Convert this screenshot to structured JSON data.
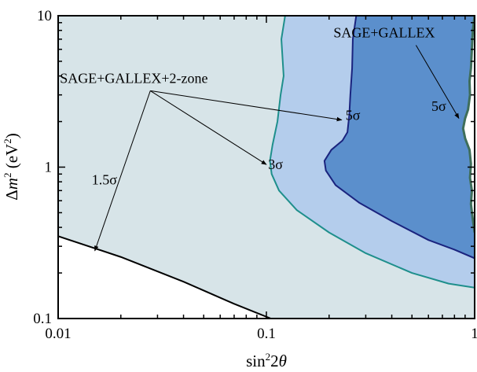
{
  "chart_data": {
    "type": "area",
    "title": "",
    "xlabel": "sin²2θ",
    "ylabel": "Δm² (eV²)",
    "xlabel_parts": {
      "base": "sin",
      "sup": "2",
      "rest": "2",
      "theta": "θ"
    },
    "ylabel_parts": {
      "delta": "Δ",
      "m": "m",
      "sup": "2",
      "unit_open": " (eV",
      "unit_sup": "2",
      "unit_close": ")"
    },
    "xscale": "log",
    "yscale": "log",
    "xlim": [
      0.01,
      1
    ],
    "ylim": [
      0.1,
      10
    ],
    "x_ticks": [
      {
        "value": 0.01,
        "label": "0.01"
      },
      {
        "value": 0.1,
        "label": "0.1"
      },
      {
        "value": 1,
        "label": "1"
      }
    ],
    "y_ticks": [
      {
        "value": 0.1,
        "label": "0.1"
      },
      {
        "value": 1,
        "label": "1"
      },
      {
        "value": 10,
        "label": "10"
      }
    ],
    "grid": false,
    "legend": "none",
    "regions": [
      {
        "name": "1.5σ",
        "fill": "#d7e4e8",
        "stroke": "#000000",
        "boundary": [
          [
            0.01,
            0.35
          ],
          [
            0.02,
            0.255
          ],
          [
            0.04,
            0.175
          ],
          [
            0.07,
            0.125
          ],
          [
            0.105,
            0.1
          ]
        ]
      },
      {
        "name": "3σ",
        "fill": "#b4cdec",
        "stroke": "#1e8f8c",
        "boundary": [
          [
            0.123,
            10
          ],
          [
            0.118,
            7
          ],
          [
            0.121,
            4
          ],
          [
            0.117,
            3
          ],
          [
            0.113,
            2
          ],
          [
            0.107,
            1.4
          ],
          [
            0.104,
            1.1
          ],
          [
            0.106,
            0.9
          ],
          [
            0.115,
            0.7
          ],
          [
            0.14,
            0.52
          ],
          [
            0.2,
            0.37
          ],
          [
            0.3,
            0.27
          ],
          [
            0.5,
            0.2
          ],
          [
            0.75,
            0.17
          ],
          [
            1,
            0.16
          ]
        ]
      },
      {
        "name": "5σ",
        "fill": "#5b8fcc",
        "stroke": "#1a237e",
        "boundary": [
          [
            0.27,
            10
          ],
          [
            0.26,
            7
          ],
          [
            0.258,
            4.5
          ],
          [
            0.253,
            3
          ],
          [
            0.25,
            2.2
          ],
          [
            0.245,
            1.7
          ],
          [
            0.232,
            1.5
          ],
          [
            0.205,
            1.3
          ],
          [
            0.19,
            1.1
          ],
          [
            0.193,
            0.95
          ],
          [
            0.215,
            0.76
          ],
          [
            0.28,
            0.58
          ],
          [
            0.4,
            0.44
          ],
          [
            0.6,
            0.33
          ],
          [
            0.8,
            0.285
          ],
          [
            1,
            0.25
          ]
        ]
      },
      {
        "name": "SAGE+GALLEX 5σ",
        "fill": "#ffffff",
        "stroke": "#3f6e5a",
        "boundary": [
          [
            1,
            10
          ],
          [
            0.98,
            8
          ],
          [
            0.97,
            6
          ],
          [
            0.96,
            4.5
          ],
          [
            0.945,
            3.7
          ],
          [
            0.95,
            3.0
          ],
          [
            0.93,
            2.4
          ],
          [
            0.9,
            2.1
          ],
          [
            0.88,
            1.8
          ],
          [
            0.9,
            1.55
          ],
          [
            0.945,
            1.3
          ],
          [
            0.96,
            1.05
          ],
          [
            0.95,
            0.85
          ],
          [
            0.97,
            0.7
          ],
          [
            0.96,
            0.57
          ],
          [
            0.98,
            0.45
          ],
          [
            1,
            0.37
          ]
        ]
      }
    ],
    "annotations": [
      {
        "name": "SAGE+GALLEX",
        "text": "SAGE+GALLEX",
        "at": [
          0.21,
          7.2
        ],
        "arrows_to": [
          [
            0.84,
            2.1
          ]
        ]
      },
      {
        "name": "SAGE+GALLEX+2-zone",
        "text": "SAGE+GALLEX+2-zone",
        "at": [
          0.0102,
          3.6
        ],
        "arrows_to": [
          [
            0.015,
            0.28
          ],
          [
            0.1,
            1.04
          ],
          [
            0.23,
            2.05
          ]
        ]
      },
      {
        "name": "5σ (SAGE+GALLEX)",
        "text": "5σ",
        "at": [
          0.62,
          2.35
        ]
      },
      {
        "name": "5σ (2-zone)",
        "text": "5σ",
        "at": [
          0.24,
          2.05
        ]
      },
      {
        "name": "3σ",
        "text": "3σ",
        "at": [
          0.102,
          0.97
        ]
      },
      {
        "name": "1.5σ",
        "text": "1.5σ",
        "at": [
          0.0145,
          0.77
        ]
      }
    ]
  }
}
